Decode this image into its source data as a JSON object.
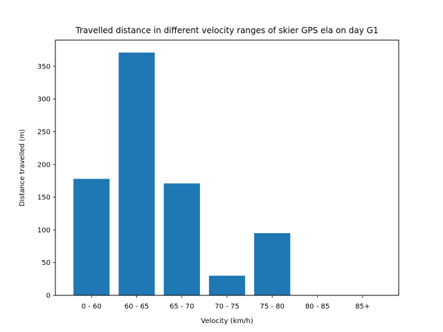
{
  "chart_data": {
    "type": "bar",
    "title": "Travelled distance in different velocity ranges of skier GPS ela on day G1",
    "xlabel": "Velocity (km/h)",
    "ylabel": "Distance travelled (m)",
    "categories": [
      "0 - 60",
      "60 - 65",
      "65 - 70",
      "70 - 75",
      "75 - 80",
      "80 - 85",
      "85+"
    ],
    "values": [
      178,
      371,
      171,
      30,
      95,
      0,
      0
    ],
    "ylim": [
      0,
      390
    ],
    "yticks": [
      0,
      50,
      100,
      150,
      200,
      250,
      300,
      350
    ],
    "bar_color": "#1f77b4",
    "grid": false,
    "legend": "none"
  }
}
